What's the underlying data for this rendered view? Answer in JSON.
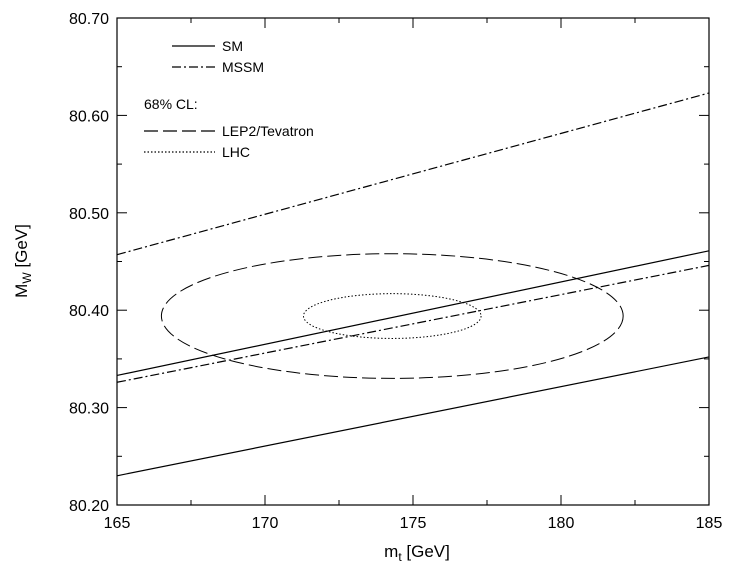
{
  "chart_data": {
    "type": "line",
    "title": "",
    "xlabel": "m",
    "xlabel_sub": "t",
    "xlabel_unit": " [GeV]",
    "ylabel": "M",
    "ylabel_sub": "W",
    "ylabel_unit": " [GeV]",
    "xlim": [
      165,
      185
    ],
    "ylim": [
      80.2,
      80.7
    ],
    "x_ticks": [
      165,
      170,
      175,
      180,
      185
    ],
    "x_tick_labels": [
      "165",
      "170",
      "175",
      "180",
      "185"
    ],
    "y_ticks": [
      80.2,
      80.3,
      80.4,
      80.5,
      80.6,
      80.7
    ],
    "y_tick_labels": [
      "80.20",
      "80.30",
      "80.40",
      "80.50",
      "80.60",
      "80.70"
    ],
    "grid": false,
    "series": [
      {
        "name": "SM",
        "style": "solid",
        "points": [
          [
            165,
            80.333
          ],
          [
            185,
            80.461
          ]
        ]
      },
      {
        "name": "SM",
        "style": "solid",
        "points": [
          [
            165,
            80.23
          ],
          [
            185,
            80.352
          ]
        ]
      },
      {
        "name": "MSSM",
        "style": "dashdot",
        "points": [
          [
            165,
            80.457
          ],
          [
            185,
            80.623
          ]
        ]
      },
      {
        "name": "MSSM",
        "style": "dashdot",
        "points": [
          [
            165,
            80.326
          ],
          [
            185,
            80.446
          ]
        ]
      }
    ],
    "ellipses": [
      {
        "name": "LEP2/Tevatron",
        "style": "longdash",
        "center": [
          174.3,
          80.394
        ],
        "radius_x": 7.8,
        "radius_y": 0.064
      },
      {
        "name": "LHC",
        "style": "dotted",
        "center": [
          174.3,
          80.394
        ],
        "radius_x": 3.0,
        "radius_y": 0.023
      }
    ],
    "legend": {
      "placement": "top-left",
      "entries": [
        {
          "label": "SM",
          "style": "solid"
        },
        {
          "label": "MSSM",
          "style": "dashdot"
        }
      ],
      "cl_header": "68% CL:",
      "cl_entries": [
        {
          "label": "LEP2/Tevatron",
          "style": "longdash"
        },
        {
          "label": "LHC",
          "style": "dotted"
        }
      ]
    }
  }
}
